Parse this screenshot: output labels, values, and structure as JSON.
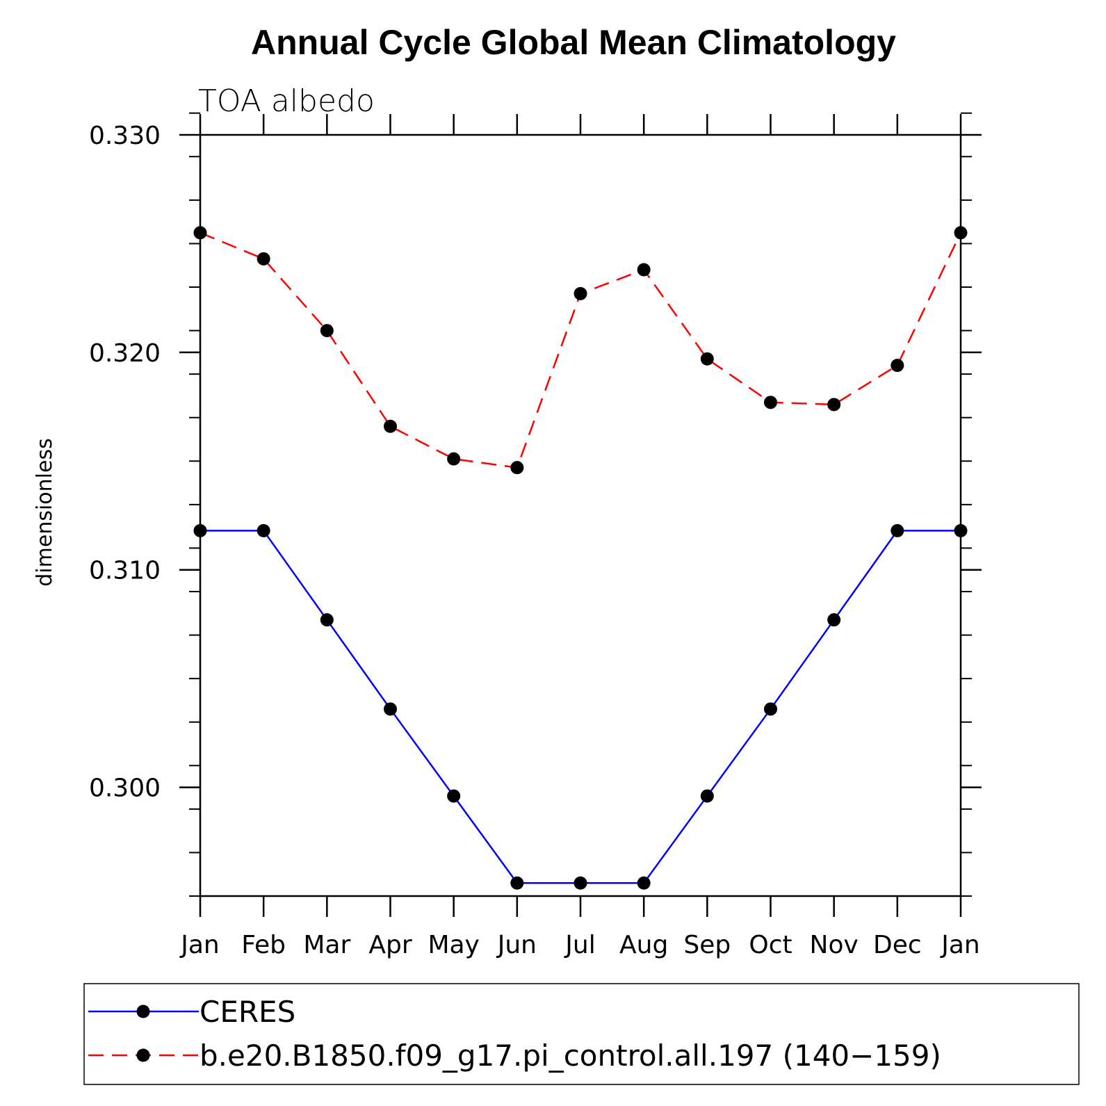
{
  "chart_data": {
    "type": "line",
    "title": "Annual Cycle Global Mean Climatology",
    "subtitle": "TOA albedo",
    "xlabel": "",
    "ylabel": "dimensionless",
    "categories": [
      "Jan",
      "Feb",
      "Mar",
      "Apr",
      "May",
      "Jun",
      "Jul",
      "Aug",
      "Sep",
      "Oct",
      "Nov",
      "Dec",
      "Jan"
    ],
    "ylim": [
      0.295,
      0.33
    ],
    "yticks": [
      0.3,
      0.31,
      0.32,
      0.33
    ],
    "ytick_labels": [
      "0.300",
      "0.310",
      "0.320",
      "0.330"
    ],
    "y_minor_step": 0.002,
    "grid": false,
    "legend_position": "bottom",
    "series": [
      {
        "name": "CERES",
        "color": "#0000ff",
        "dash": "solid",
        "marker": "filled-circle",
        "values": [
          0.3118,
          0.3118,
          0.3077,
          0.3036,
          0.2996,
          0.2956,
          0.2956,
          0.2956,
          0.2996,
          0.3036,
          0.3077,
          0.3118,
          0.3118
        ]
      },
      {
        "name": "b.e20.B1850.f09_g17.pi_control.all.197 (140−159)",
        "color": "#ff0000",
        "dash": "dashed",
        "marker": "filled-circle",
        "values": [
          0.3255,
          0.3243,
          0.321,
          0.3166,
          0.3151,
          0.3147,
          0.3227,
          0.3238,
          0.3197,
          0.3177,
          0.3176,
          0.3194,
          0.3255
        ]
      }
    ]
  }
}
